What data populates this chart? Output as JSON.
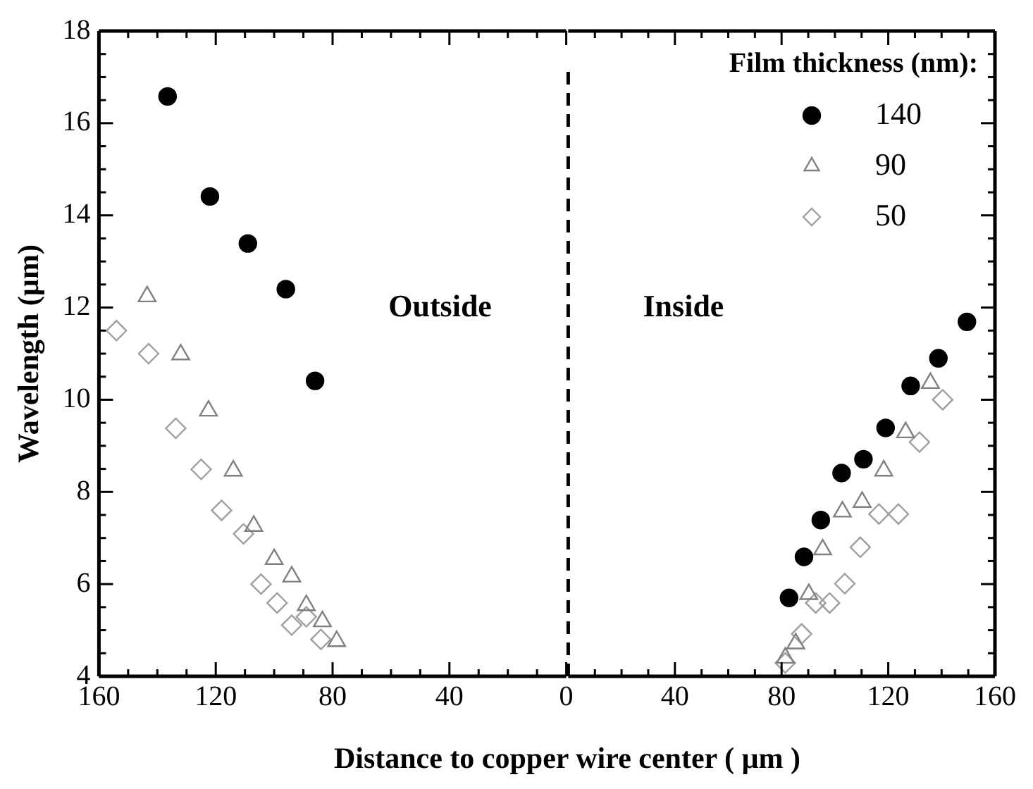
{
  "chart_data": [
    {
      "type": "scatter",
      "xlabel": "Distance to copper wire center  ( µm )",
      "ylabel": "Wavelength (µm)",
      "grid": false,
      "xlim": [
        160,
        0
      ],
      "xticks": [
        160,
        120,
        80,
        40,
        0
      ],
      "ylim": [
        4,
        18
      ],
      "yticks": [
        4,
        6,
        8,
        10,
        12,
        14,
        16,
        18
      ],
      "annotations": [
        "Outside"
      ],
      "series": [
        {
          "color": "#000000",
          "marker": "circle",
          "x": [
            136.5,
            122,
            109,
            96,
            86
          ],
          "values": [
            16.58,
            14.41,
            13.39,
            12.4,
            10.41
          ]
        },
        {
          "color": "#808080",
          "marker": "triangle",
          "x": [
            143.5,
            132,
            122.5,
            114,
            107,
            100,
            94,
            89,
            83.5,
            78.6
          ],
          "values": [
            12.24,
            10.98,
            9.76,
            8.46,
            7.26,
            6.54,
            6.16,
            5.54,
            5.19,
            4.76
          ]
        },
        {
          "color": "#a0a0a0",
          "marker": "diamond",
          "x": [
            154,
            143,
            133.7,
            125,
            118,
            110.5,
            104.5,
            99,
            94,
            89,
            84
          ],
          "values": [
            11.5,
            11.0,
            9.38,
            8.49,
            7.6,
            7.09,
            6.0,
            5.59,
            5.11,
            5.29,
            4.8
          ]
        }
      ]
    },
    {
      "type": "scatter",
      "legend_title": "Film thickness (nm):",
      "legend": "top right",
      "grid": false,
      "tick_labels": "x",
      "xlim": [
        0,
        160
      ],
      "xticks": [
        40,
        80,
        120,
        160
      ],
      "ylim": [
        4,
        18
      ],
      "yticks": [
        4,
        6,
        8,
        10,
        12,
        14,
        16,
        18
      ],
      "ref_lines": [
        {
          "axis": "x",
          "value": 0,
          "line_style": "dashed",
          "color": "#000000"
        }
      ],
      "annotations": [
        "Inside"
      ],
      "series": [
        {
          "name": "140",
          "color": "#000000",
          "marker": "circle",
          "x": [
            82.8,
            88.4,
            94.7,
            102.5,
            110.7,
            119,
            128.4,
            138.8,
            149.5
          ],
          "values": [
            5.7,
            6.59,
            7.39,
            8.41,
            8.71,
            9.39,
            10.3,
            10.9,
            11.69
          ]
        },
        {
          "name": "90",
          "color": "#808080",
          "marker": "triangle",
          "x": [
            81.4,
            85.3,
            90.2,
            95.4,
            102.8,
            110.2,
            118.3,
            126.5,
            135.8
          ],
          "values": [
            4.4,
            4.71,
            5.78,
            6.75,
            7.57,
            7.78,
            8.46,
            9.29,
            10.36
          ]
        },
        {
          "name": "50",
          "color": "#a0a0a0",
          "marker": "diamond",
          "x": [
            81.4,
            87.5,
            92.8,
            98,
            103.7,
            109.5,
            116.5,
            123.8,
            131.7,
            140.4
          ],
          "values": [
            4.29,
            4.92,
            5.59,
            5.59,
            6.01,
            6.8,
            7.52,
            7.52,
            9.08,
            10.0
          ]
        }
      ]
    }
  ]
}
